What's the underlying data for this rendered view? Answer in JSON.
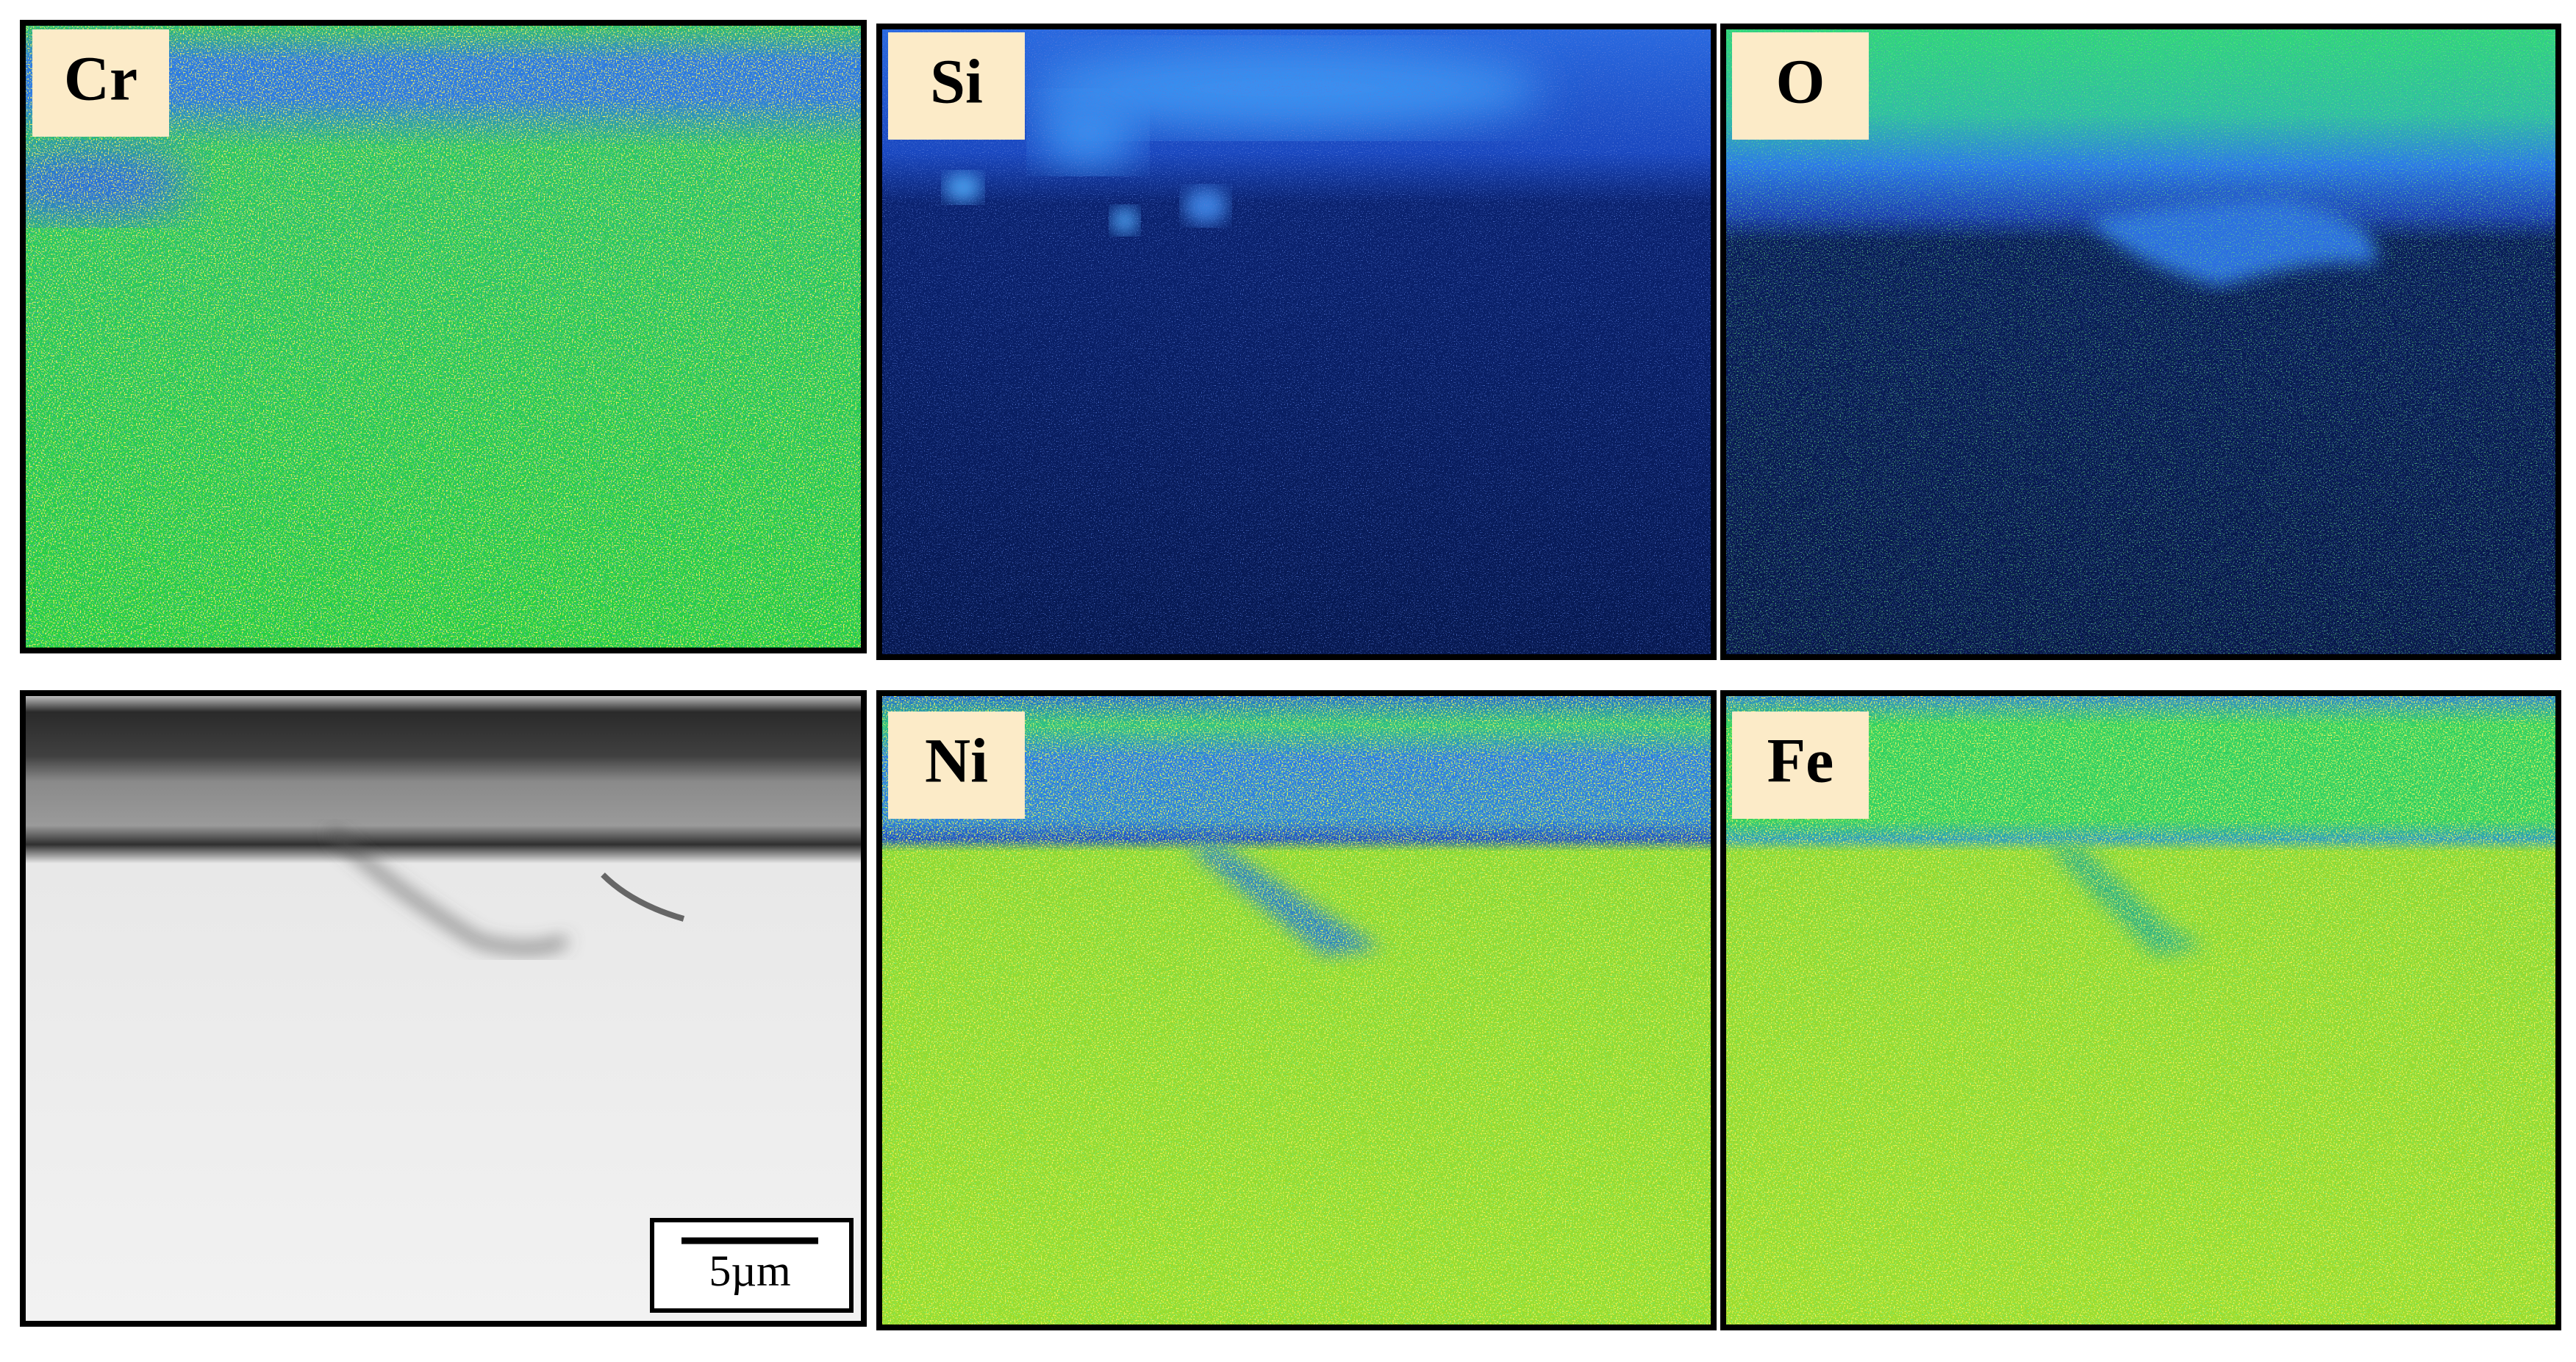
{
  "panels": [
    {
      "label": "Cr"
    },
    {
      "label": "Si"
    },
    {
      "label": "O"
    },
    {
      "label": "Ni"
    },
    {
      "label": "Fe"
    }
  ],
  "sem_image": {
    "scale_bar": "5µm"
  }
}
